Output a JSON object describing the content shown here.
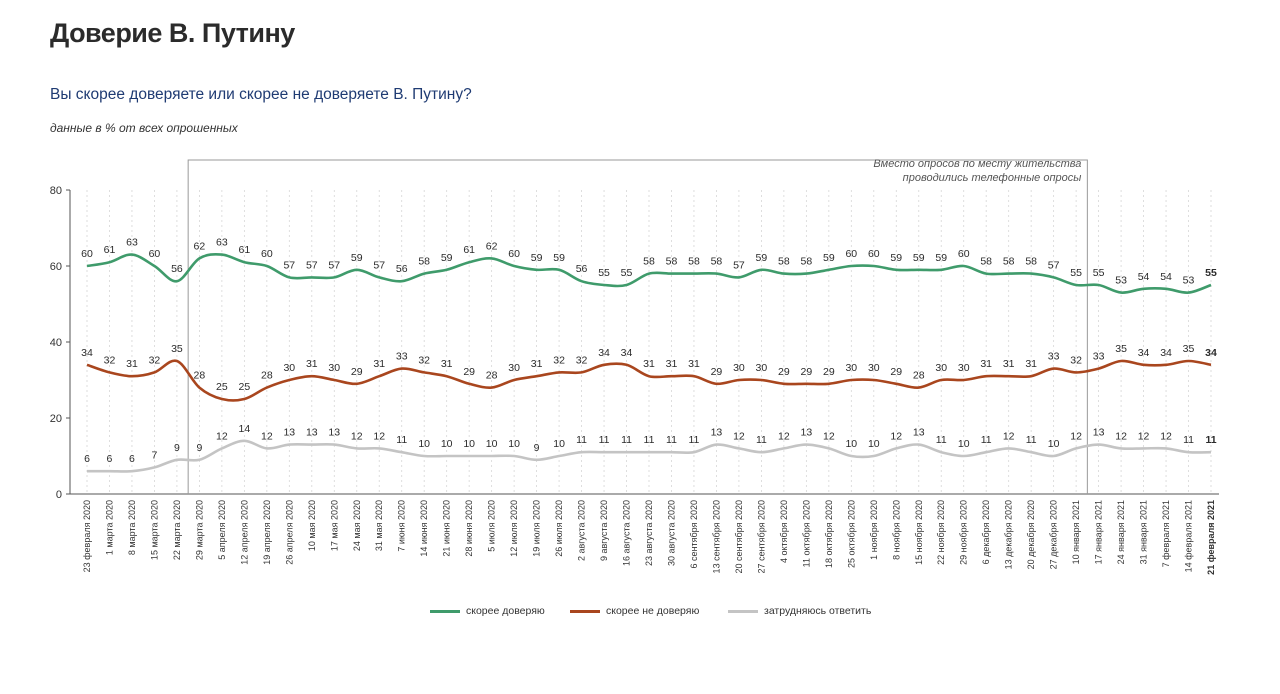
{
  "header": {
    "title": "Доверие В. Путину",
    "question": "Вы скорее доверяете или скорее не доверяете В. Путину?",
    "unit_note": "данные в % от всех опрошенных"
  },
  "chart_data": {
    "type": "line",
    "ylim": [
      0,
      80
    ],
    "yticks": [
      0,
      20,
      40,
      60,
      80
    ],
    "grid": "vertical dashed lines at each x category",
    "categories": [
      "23 февраля 2020",
      "1 марта 2020",
      "8 марта 2020",
      "15 марта 2020",
      "22 марта 2020",
      "29 марта 2020",
      "5 апреля 2020",
      "12 апреля 2020",
      "19 апреля 2020",
      "26 апреля 2020",
      "10 мая 2020",
      "17 мая 2020",
      "24 мая 2020",
      "31 мая 2020",
      "7 июня 2020",
      "14 июня 2020",
      "21 июня 2020",
      "28 июня 2020",
      "5 июля 2020",
      "12 июля 2020",
      "19 июля 2020",
      "26 июля 2020",
      "2 августа 2020",
      "9 августа 2020",
      "16 августа 2020",
      "23 августа 2020",
      "30 августа 2020",
      "6 сентября 2020",
      "13 сентября 2020",
      "20 сентября 2020",
      "27 сентября 2020",
      "4 октября 2020",
      "11 октября 2020",
      "18 октября 2020",
      "25 октября 2020",
      "1 ноября 2020",
      "8 ноября 2020",
      "15 ноября 2020",
      "22 ноября 2020",
      "29 ноября 2020",
      "6 декабря 2020",
      "13 декабря 2020",
      "20 декабря 2020",
      "27 декабря 2020",
      "10 января 2021",
      "17 января 2021",
      "24 января 2021",
      "31 января 2021",
      "7 февраля 2021",
      "14 февраля 2021",
      "21 февраля 2021"
    ],
    "series": [
      {
        "name": "скорее доверяю",
        "color": "#3f9b6b",
        "values": [
          60,
          61,
          63,
          60,
          56,
          62,
          63,
          61,
          60,
          57,
          57,
          57,
          59,
          57,
          56,
          58,
          59,
          61,
          62,
          60,
          59,
          59,
          56,
          55,
          55,
          58,
          58,
          58,
          58,
          57,
          59,
          58,
          58,
          59,
          60,
          60,
          59,
          59,
          59,
          60,
          58,
          58,
          58,
          57,
          55,
          55,
          53,
          54,
          54,
          53,
          55
        ]
      },
      {
        "name": "скорее не доверяю",
        "color": "#a9461e",
        "values": [
          34,
          32,
          31,
          32,
          35,
          28,
          25,
          25,
          28,
          30,
          31,
          30,
          29,
          31,
          33,
          32,
          31,
          29,
          28,
          30,
          31,
          32,
          32,
          34,
          34,
          31,
          31,
          31,
          29,
          30,
          30,
          29,
          29,
          29,
          30,
          30,
          29,
          28,
          30,
          30,
          31,
          31,
          31,
          33,
          32,
          33,
          35,
          34,
          34,
          35,
          34
        ]
      },
      {
        "name": "затрудняюсь ответить",
        "color": "#c4c4c4",
        "values": [
          6,
          6,
          6,
          7,
          9,
          9,
          12,
          14,
          12,
          13,
          13,
          13,
          12,
          12,
          11,
          10,
          10,
          10,
          10,
          10,
          9,
          10,
          11,
          11,
          11,
          11,
          11,
          11,
          13,
          12,
          11,
          12,
          13,
          12,
          10,
          10,
          12,
          13,
          11,
          10,
          11,
          12,
          11,
          10,
          12,
          13,
          12,
          12,
          12,
          11,
          11
        ]
      }
    ],
    "annotation": {
      "lines": [
        "Вместо опросов по месту жительства",
        "проводились телефонные опросы"
      ],
      "from_category": "29 марта 2020",
      "to_category": "10 января 2021"
    },
    "legend_position": "bottom"
  }
}
